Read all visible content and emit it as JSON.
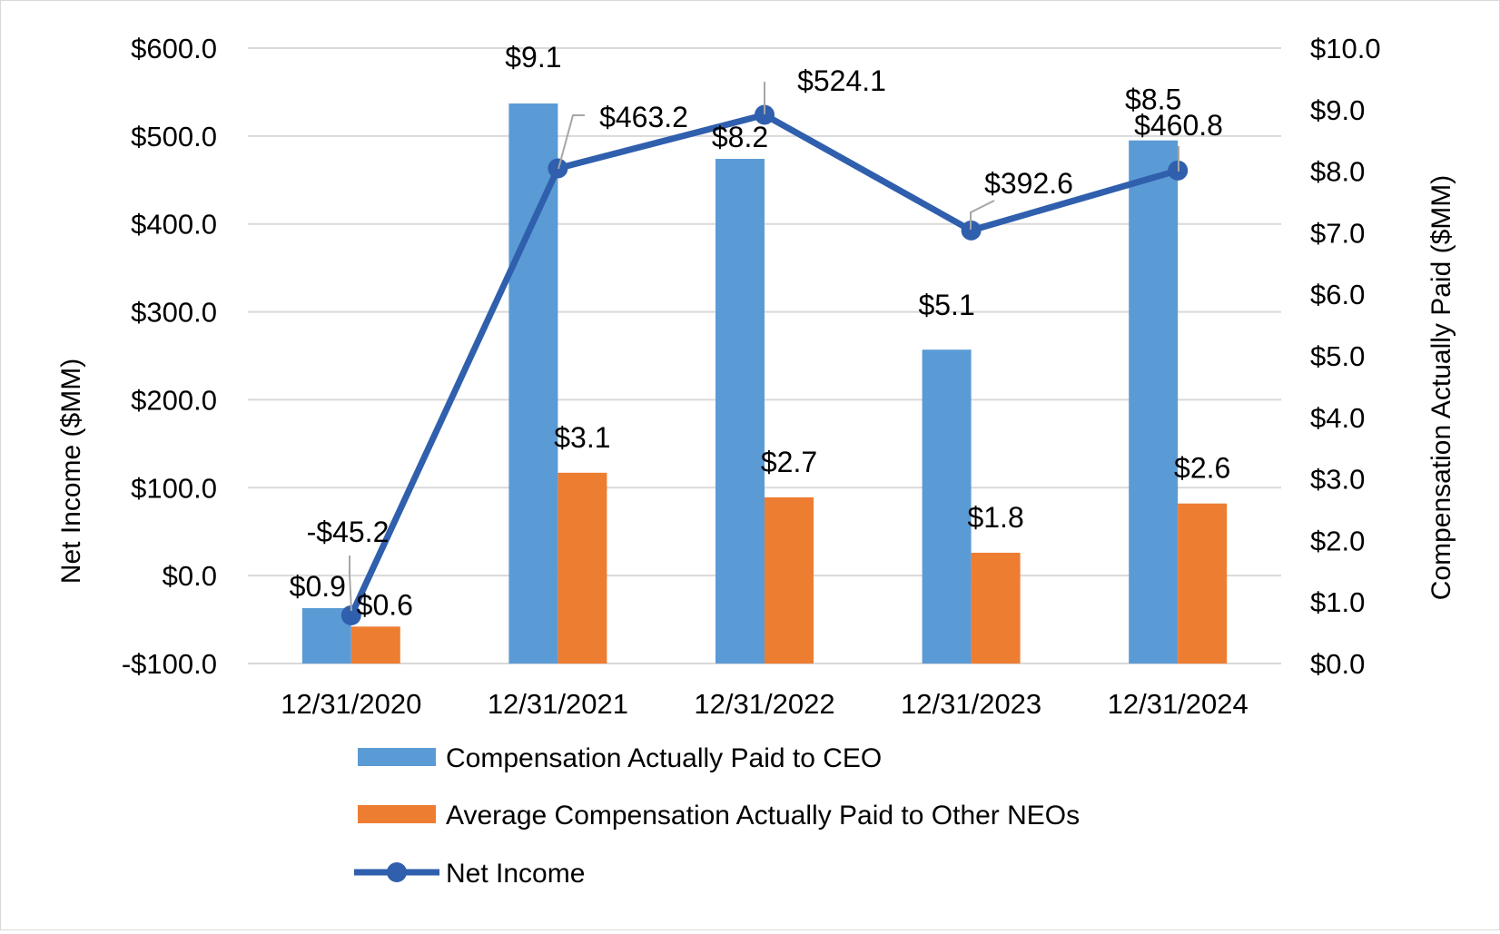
{
  "chart_data": {
    "type": "bar",
    "categories": [
      "12/31/2020",
      "12/31/2021",
      "12/31/2022",
      "12/31/2023",
      "12/31/2024"
    ],
    "series": [
      {
        "name": "Compensation Actually Paid to CEO",
        "kind": "bar",
        "axis": "right",
        "color": "#5b9bd5",
        "values": [
          0.9,
          9.1,
          8.2,
          5.1,
          8.5
        ],
        "labels": [
          "$0.9",
          "$9.1",
          "$8.2",
          "$5.1",
          "$8.5"
        ]
      },
      {
        "name": "Average Compensation Actually Paid to Other NEOs",
        "kind": "bar",
        "axis": "right",
        "color": "#ed7d31",
        "values": [
          0.6,
          3.1,
          2.7,
          1.8,
          2.6
        ],
        "labels": [
          "$0.6",
          "$3.1",
          "$2.7",
          "$1.8",
          "$2.6"
        ]
      },
      {
        "name": "Net Income",
        "kind": "line",
        "axis": "left",
        "color": "#2f5fad",
        "values": [
          -45.2,
          463.2,
          524.1,
          392.6,
          460.8
        ],
        "labels": [
          "-$45.2",
          "$463.2",
          "$524.1",
          "$392.6",
          "$460.8"
        ]
      }
    ],
    "y_left": {
      "label": "Net Income ($MM)",
      "ylim": [
        -100,
        600
      ],
      "ticks": [
        -100,
        0,
        100,
        200,
        300,
        400,
        500,
        600
      ],
      "tick_labels": [
        "-$100.0",
        "$0.0",
        "$100.0",
        "$200.0",
        "$300.0",
        "$400.0",
        "$500.0",
        "$600.0"
      ]
    },
    "y_right": {
      "label": "Compensation Actually Paid ($MM)",
      "ylim": [
        0,
        10
      ],
      "ticks": [
        0,
        1,
        2,
        3,
        4,
        5,
        6,
        7,
        8,
        9,
        10
      ],
      "tick_labels": [
        "$0.0",
        "$1.0",
        "$2.0",
        "$3.0",
        "$4.0",
        "$5.0",
        "$6.0",
        "$7.0",
        "$8.0",
        "$9.0",
        "$10.0"
      ]
    },
    "grid": true,
    "legend_position": "bottom"
  }
}
